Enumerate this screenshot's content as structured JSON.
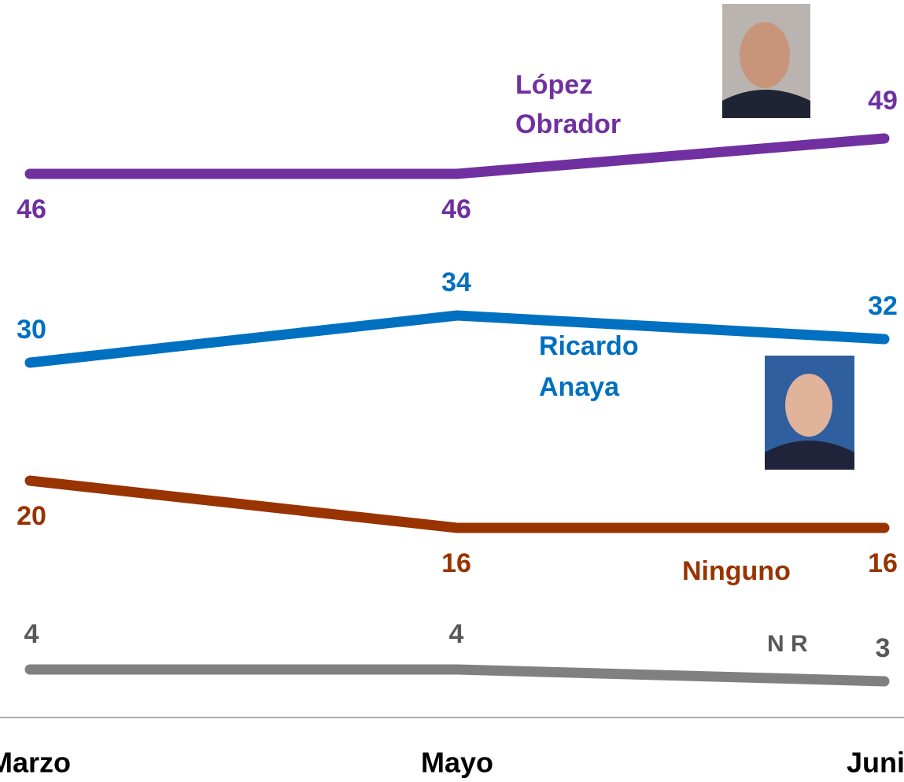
{
  "chart_data": {
    "type": "line",
    "categories": [
      "Marzo",
      "Mayo",
      "Junio"
    ],
    "ylim": [
      -5,
      60
    ],
    "series": [
      {
        "name": "López Obrador",
        "color": "#7030a0",
        "values": [
          46,
          46,
          49
        ]
      },
      {
        "name": "Ricardo Anaya",
        "color": "#0070c0",
        "values": [
          30,
          34,
          32
        ]
      },
      {
        "name": "Ninguno",
        "color": "#993300",
        "values": [
          20,
          16,
          16
        ]
      },
      {
        "name": "N R",
        "color": "#595959",
        "line_color": "#808080",
        "values": [
          4,
          4,
          3
        ]
      }
    ]
  }
}
